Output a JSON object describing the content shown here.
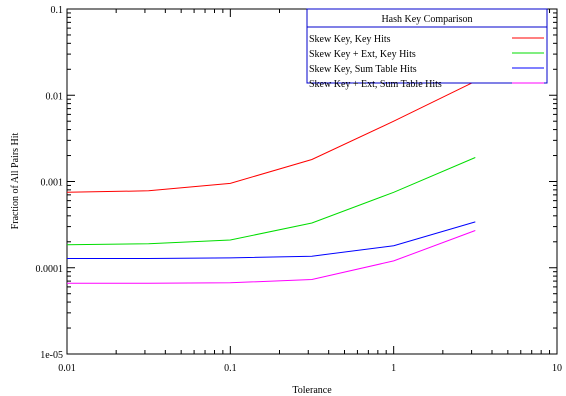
{
  "chart_data": {
    "type": "line",
    "xlabel": "Tolerance",
    "ylabel": "Fraction of All Pairs Hit",
    "xscale": "log",
    "yscale": "log",
    "xlim": [
      0.01,
      10
    ],
    "ylim": [
      1e-05,
      0.1
    ],
    "xticks": [
      0.01,
      0.1,
      1,
      10
    ],
    "xtick_labels": [
      "0.01",
      "0.1",
      "1",
      "10"
    ],
    "yticks": [
      1e-05,
      0.0001,
      0.001,
      0.01,
      0.1
    ],
    "ytick_labels": [
      "1e-05",
      "0.0001",
      "0.001",
      "0.01",
      "0.1"
    ],
    "legend": {
      "title": "Hash Key Comparison",
      "placement": "top-right",
      "border_color": "#0000cc"
    },
    "x": [
      0.01,
      0.0316,
      0.1,
      0.316,
      1,
      3.16
    ],
    "series": [
      {
        "name": "Skew Key, Key Hits",
        "color": "#ff0000",
        "values": [
          0.00075,
          0.00078,
          0.00095,
          0.0018,
          0.005,
          0.0145
        ]
      },
      {
        "name": "Skew Key + Ext, Key Hits",
        "color": "#00dd00",
        "values": [
          0.000185,
          0.00019,
          0.00021,
          0.00033,
          0.00075,
          0.0019
        ]
      },
      {
        "name": "Skew Key, Sum Table Hits",
        "color": "#0000ff",
        "values": [
          0.000128,
          0.000128,
          0.00013,
          0.000136,
          0.00018,
          0.00034
        ]
      },
      {
        "name": "Skew Key + Ext, Sum Table Hits",
        "color": "#ff00ff",
        "values": [
          6.6e-05,
          6.6e-05,
          6.7e-05,
          7.3e-05,
          0.00012,
          0.00027
        ]
      }
    ]
  }
}
